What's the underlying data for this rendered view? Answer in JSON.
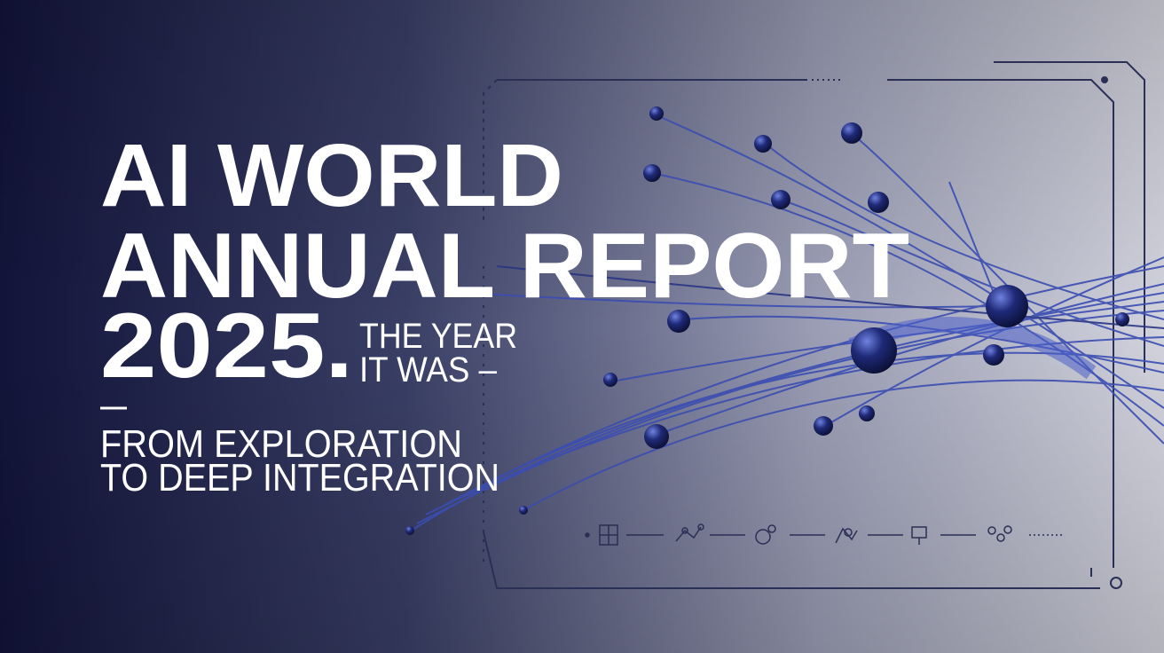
{
  "title": {
    "line1": "AI WORLD",
    "line2": "ANNUAL REPORT",
    "year": "2025.",
    "tagline": [
      "THE YEAR",
      "IT WAS –"
    ]
  },
  "subtitle": [
    "FROM EXPLORATION",
    "TO DEEP INTEGRATION"
  ]
}
